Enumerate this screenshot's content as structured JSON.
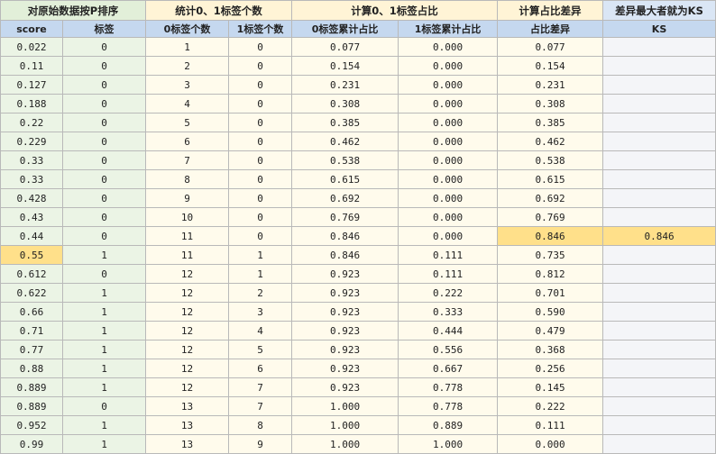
{
  "groups": [
    "对原始数据按P排序",
    "统计0、1标签个数",
    "计算0、1标签占比",
    "计算占比差异",
    "差异最大者就为KS"
  ],
  "headers": [
    "score",
    "标签",
    "0标签个数",
    "1标签个数",
    "0标签累计占比",
    "1标签累计占比",
    "占比差异",
    "KS"
  ],
  "rows": [
    [
      "0.022",
      "0",
      "1",
      "0",
      "0.077",
      "0.000",
      "0.077",
      ""
    ],
    [
      "0.11",
      "0",
      "2",
      "0",
      "0.154",
      "0.000",
      "0.154",
      ""
    ],
    [
      "0.127",
      "0",
      "3",
      "0",
      "0.231",
      "0.000",
      "0.231",
      ""
    ],
    [
      "0.188",
      "0",
      "4",
      "0",
      "0.308",
      "0.000",
      "0.308",
      ""
    ],
    [
      "0.22",
      "0",
      "5",
      "0",
      "0.385",
      "0.000",
      "0.385",
      ""
    ],
    [
      "0.229",
      "0",
      "6",
      "0",
      "0.462",
      "0.000",
      "0.462",
      ""
    ],
    [
      "0.33",
      "0",
      "7",
      "0",
      "0.538",
      "0.000",
      "0.538",
      ""
    ],
    [
      "0.33",
      "0",
      "8",
      "0",
      "0.615",
      "0.000",
      "0.615",
      ""
    ],
    [
      "0.428",
      "0",
      "9",
      "0",
      "0.692",
      "0.000",
      "0.692",
      ""
    ],
    [
      "0.43",
      "0",
      "10",
      "0",
      "0.769",
      "0.000",
      "0.769",
      ""
    ],
    [
      "0.44",
      "0",
      "11",
      "0",
      "0.846",
      "0.000",
      "0.846",
      "0.846"
    ],
    [
      "0.55",
      "1",
      "11",
      "1",
      "0.846",
      "0.111",
      "0.735",
      ""
    ],
    [
      "0.612",
      "0",
      "12",
      "1",
      "0.923",
      "0.111",
      "0.812",
      ""
    ],
    [
      "0.622",
      "1",
      "12",
      "2",
      "0.923",
      "0.222",
      "0.701",
      ""
    ],
    [
      "0.66",
      "1",
      "12",
      "3",
      "0.923",
      "0.333",
      "0.590",
      ""
    ],
    [
      "0.71",
      "1",
      "12",
      "4",
      "0.923",
      "0.444",
      "0.479",
      ""
    ],
    [
      "0.77",
      "1",
      "12",
      "5",
      "0.923",
      "0.556",
      "0.368",
      ""
    ],
    [
      "0.88",
      "1",
      "12",
      "6",
      "0.923",
      "0.667",
      "0.256",
      ""
    ],
    [
      "0.889",
      "1",
      "12",
      "7",
      "0.923",
      "0.778",
      "0.145",
      ""
    ],
    [
      "0.889",
      "0",
      "13",
      "7",
      "1.000",
      "0.778",
      "0.222",
      ""
    ],
    [
      "0.952",
      "1",
      "13",
      "8",
      "1.000",
      "0.889",
      "0.111",
      ""
    ],
    [
      "0.99",
      "1",
      "13",
      "9",
      "1.000",
      "1.000",
      "0.000",
      ""
    ]
  ],
  "highlights": {
    "max_diff_row_index": 10,
    "threshold_score_row_index": 11,
    "color": "#ffe08a"
  }
}
